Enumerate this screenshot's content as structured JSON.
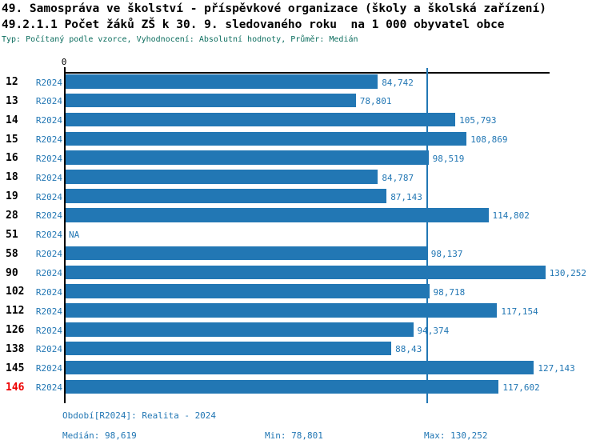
{
  "header": {
    "title_line1": "49. Samospráva ve školství - příspěvkové organizace (školy a školská zařízení)",
    "title_line2": "49.2.1.1 Počet žáků ZŠ k 30. 9. sledovaného roku  na 1 000 obyvatel obce",
    "meta_line": "Typ: Počítaný podle vzorce, Vyhodnocení: Absolutní hodnoty, Průměr: Medián"
  },
  "colors": {
    "bar": "#2277b4",
    "accent_text": "#2277b4",
    "median_line": "#2277b4",
    "highlight_row_text": "#ee0000",
    "meta_text": "#0d6e5f",
    "axis": "#000000"
  },
  "chart_data": {
    "type": "bar",
    "orientation": "horizontal",
    "title": "49.2.1.1 Počet žáků ZŠ k 30. 9. sledovaného roku na 1 000 obyvatel obce",
    "categories": [
      "12",
      "13",
      "14",
      "15",
      "16",
      "18",
      "19",
      "28",
      "51",
      "58",
      "90",
      "102",
      "112",
      "126",
      "138",
      "145",
      "146"
    ],
    "series": [
      {
        "name": "R2024",
        "values": [
          84.742,
          78.801,
          105.793,
          108.869,
          98.519,
          84.787,
          87.143,
          114.802,
          null,
          98.137,
          130.252,
          98.718,
          117.154,
          94.374,
          88.43,
          127.143,
          117.602
        ]
      }
    ],
    "value_labels": [
      "84,742",
      "78,801",
      "105,793",
      "108,869",
      "98,519",
      "84,787",
      "87,143",
      "114,802",
      "NA",
      "98,137",
      "130,252",
      "98,718",
      "117,154",
      "94,374",
      "88,43",
      "127,143",
      "117,602"
    ],
    "na_label": "NA",
    "x_tick_labels": [
      "0"
    ],
    "x_axis_min": 0,
    "median": 98.619,
    "min": 78.801,
    "max": 130.252,
    "highlighted_category": "146",
    "legend_position": "none",
    "grid": false
  },
  "footer": {
    "period_label": "Období[R2024]: Realita - 2024",
    "median_label": "Medián: 98,619",
    "min_label": "Min: 78,801",
    "max_label": "Max: 130,252"
  }
}
